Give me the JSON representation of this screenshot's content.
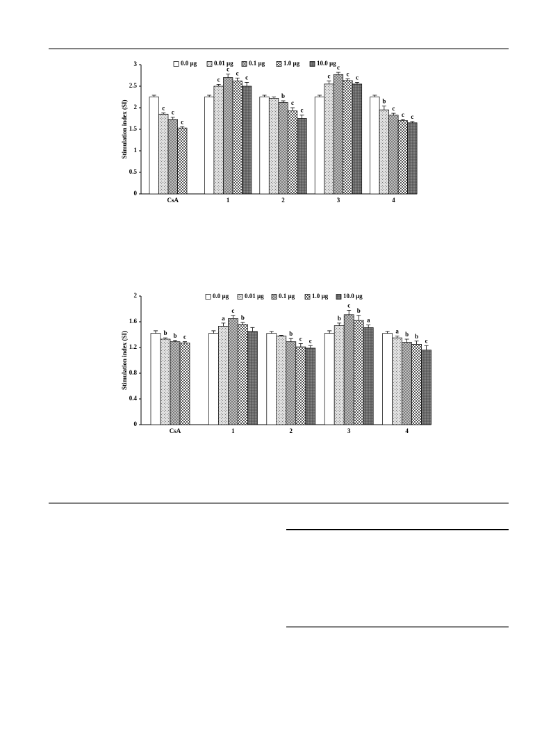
{
  "chart_data": [
    {
      "type": "bar",
      "ylabel": "Stimulation index (SI)",
      "categories": [
        "CsA",
        "1",
        "2",
        "3",
        "4"
      ],
      "ylim": [
        0,
        3
      ],
      "yticks": [
        0,
        0.5,
        1,
        1.5,
        2,
        2.5,
        3
      ],
      "series": [
        {
          "name": "0.0 µg",
          "color": "#ffffff",
          "values": [
            2.25,
            2.25,
            2.25,
            2.25,
            2.25
          ],
          "errors": [
            0.04,
            0.04,
            0.04,
            0.04,
            0.04
          ],
          "letters": [
            null,
            null,
            null,
            null,
            null
          ]
        },
        {
          "name": "0.01 µg",
          "color": "#e0e0e0",
          "values": [
            1.85,
            2.5,
            2.22,
            2.55,
            1.95
          ],
          "errors": [
            0.03,
            0.04,
            0.03,
            0.07,
            0.09
          ],
          "letters": [
            "c",
            "c",
            null,
            "c",
            "b"
          ]
        },
        {
          "name": "0.1 µg",
          "color": "#c8c8c8",
          "values": [
            1.73,
            2.7,
            2.12,
            2.77,
            1.83
          ],
          "errors": [
            0.05,
            0.08,
            0.04,
            0.05,
            0.04
          ],
          "letters": [
            "c",
            "c",
            "b",
            "c",
            "c"
          ]
        },
        {
          "name": "1.0 µg",
          "color": "#555555",
          "values": [
            1.53,
            2.62,
            1.93,
            2.63,
            1.7
          ],
          "errors": [
            0.03,
            0.07,
            0.07,
            0.04,
            0.03
          ],
          "letters": [
            "c",
            "c",
            "c",
            "c",
            "c"
          ]
        },
        {
          "name": "10.0 µg",
          "color": "#808080",
          "values": [
            null,
            2.5,
            1.75,
            2.55,
            1.65
          ],
          "errors": [
            null,
            0.09,
            0.08,
            0.04,
            0.03
          ],
          "letters": [
            null,
            "c",
            "c",
            "c",
            "c"
          ]
        }
      ]
    },
    {
      "type": "bar",
      "ylabel": "Stimulation index (SI)",
      "categories": [
        "CsA",
        "1",
        "2",
        "3",
        "4"
      ],
      "ylim": [
        0,
        2
      ],
      "yticks": [
        0,
        0.4,
        0.8,
        1.2,
        1.6,
        2
      ],
      "series": [
        {
          "name": "0.0 µg",
          "color": "#ffffff",
          "values": [
            1.42,
            1.42,
            1.42,
            1.42,
            1.42
          ],
          "errors": [
            0.04,
            0.04,
            0.03,
            0.04,
            0.03
          ],
          "letters": [
            null,
            null,
            null,
            null,
            null
          ]
        },
        {
          "name": "0.01 µg",
          "color": "#e0e0e0",
          "values": [
            1.33,
            1.53,
            1.38,
            1.54,
            1.35
          ],
          "errors": [
            0.02,
            0.05,
            0.01,
            0.04,
            0.03
          ],
          "letters": [
            "b",
            "a",
            null,
            "b",
            "a"
          ]
        },
        {
          "name": "0.1 µg",
          "color": "#c8c8c8",
          "values": [
            1.29,
            1.65,
            1.29,
            1.71,
            1.28
          ],
          "errors": [
            0.02,
            0.05,
            0.05,
            0.07,
            0.05
          ],
          "letters": [
            "b",
            "c",
            "b",
            "c",
            "b"
          ]
        },
        {
          "name": "1.0 µg",
          "color": "#555555",
          "values": [
            1.27,
            1.56,
            1.21,
            1.62,
            1.25
          ],
          "errors": [
            0.02,
            0.03,
            0.05,
            0.08,
            0.05
          ],
          "letters": [
            "c",
            "b",
            "c",
            "b",
            "b"
          ]
        },
        {
          "name": "10.0 µg",
          "color": "#808080",
          "values": [
            null,
            1.45,
            1.19,
            1.51,
            1.16
          ],
          "errors": [
            null,
            0.06,
            0.04,
            0.04,
            0.07
          ],
          "letters": [
            null,
            null,
            "c",
            "a",
            "c"
          ]
        }
      ]
    }
  ]
}
